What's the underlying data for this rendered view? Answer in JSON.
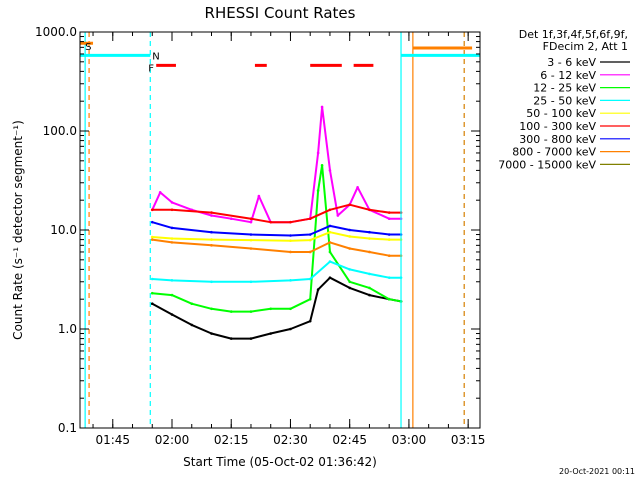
{
  "chart_data": {
    "type": "line",
    "title": "RHESSI Count Rates",
    "xlabel": "Start Time (05-Oct-02 01:36:42)",
    "ylabel": "Count Rate (s⁻¹ detector segment⁻¹)",
    "y_scale": "log",
    "xlim": [
      "01:36:42",
      "03:18:00"
    ],
    "ylim": [
      0.1,
      1000.0
    ],
    "x_ticks": [
      "01:45",
      "02:00",
      "02:15",
      "02:30",
      "02:45",
      "03:00",
      "03:15"
    ],
    "y_ticks": [
      "0.1",
      "1.0",
      "10.0",
      "100.0",
      "1000.0"
    ],
    "grid": false,
    "legend_position": "right",
    "legend_header": [
      "Det 1f,3f,4f,5f,6f,9f,",
      "FDecim 2, Att 1"
    ],
    "series": [
      {
        "name": "3 - 6 keV",
        "color": "#000000",
        "x": [
          "01:55",
          "02:00",
          "02:05",
          "02:10",
          "02:15",
          "02:20",
          "02:25",
          "02:30",
          "02:35",
          "02:37",
          "02:40",
          "02:45",
          "02:50",
          "02:55",
          "02:58"
        ],
        "y": [
          1.8,
          1.4,
          1.1,
          0.9,
          0.8,
          0.8,
          0.9,
          1.0,
          1.2,
          2.5,
          3.3,
          2.6,
          2.2,
          2.0,
          1.9
        ]
      },
      {
        "name": "6 - 12 keV",
        "color": "#ff00ff",
        "x": [
          "01:55",
          "01:57",
          "02:00",
          "02:05",
          "02:10",
          "02:15",
          "02:20",
          "02:22",
          "02:25",
          "02:30",
          "02:35",
          "02:37",
          "02:38",
          "02:40",
          "02:42",
          "02:45",
          "02:47",
          "02:50",
          "02:55",
          "02:58"
        ],
        "y": [
          16,
          24,
          19,
          16,
          14,
          13,
          12,
          22,
          12,
          12,
          13,
          60,
          175,
          40,
          14,
          18,
          27,
          16,
          13,
          13
        ]
      },
      {
        "name": "12 - 25 keV",
        "color": "#00ff00",
        "x": [
          "01:55",
          "02:00",
          "02:05",
          "02:10",
          "02:15",
          "02:20",
          "02:25",
          "02:30",
          "02:35",
          "02:37",
          "02:38",
          "02:40",
          "02:45",
          "02:50",
          "02:55",
          "02:58"
        ],
        "y": [
          2.3,
          2.2,
          1.8,
          1.6,
          1.5,
          1.5,
          1.6,
          1.6,
          2.0,
          25,
          45,
          6.0,
          3.0,
          2.6,
          2.0,
          1.9
        ]
      },
      {
        "name": "25 - 50 keV",
        "color": "#00ffff",
        "x": [
          "01:55",
          "02:00",
          "02:10",
          "02:20",
          "02:30",
          "02:35",
          "02:40",
          "02:45",
          "02:50",
          "02:55",
          "02:58"
        ],
        "y": [
          3.2,
          3.1,
          3.0,
          3.0,
          3.1,
          3.2,
          4.8,
          4.0,
          3.6,
          3.3,
          3.3
        ]
      },
      {
        "name": "50 - 100 keV",
        "color": "#ffff00",
        "x": [
          "01:55",
          "02:00",
          "02:10",
          "02:20",
          "02:30",
          "02:35",
          "02:40",
          "02:45",
          "02:50",
          "02:55",
          "02:58"
        ],
        "y": [
          8.5,
          8.2,
          8.0,
          7.9,
          7.8,
          7.9,
          9.5,
          8.6,
          8.2,
          8.0,
          8.0
        ]
      },
      {
        "name": "100 - 300 keV",
        "color": "#ff0000",
        "x": [
          "01:55",
          "02:00",
          "02:10",
          "02:20",
          "02:25",
          "02:30",
          "02:35",
          "02:40",
          "02:45",
          "02:50",
          "02:55",
          "02:58"
        ],
        "y": [
          16,
          16,
          15,
          13,
          12,
          12,
          13,
          16,
          18,
          16,
          15,
          15
        ]
      },
      {
        "name": "300 - 800 keV",
        "color": "#0000ff",
        "x": [
          "01:55",
          "02:00",
          "02:10",
          "02:20",
          "02:30",
          "02:35",
          "02:40",
          "02:45",
          "02:50",
          "02:55",
          "02:58"
        ],
        "y": [
          12,
          10.5,
          9.5,
          9.0,
          8.8,
          9.0,
          11.0,
          10.0,
          9.5,
          9.0,
          9.0
        ]
      },
      {
        "name": "800 - 7000 keV",
        "color": "#ff8000",
        "x": [
          "01:55",
          "02:00",
          "02:10",
          "02:20",
          "02:30",
          "02:35",
          "02:40",
          "02:45",
          "02:50",
          "02:55",
          "02:58"
        ],
        "y": [
          8.0,
          7.5,
          7.0,
          6.5,
          6.0,
          6.0,
          7.5,
          6.5,
          6.0,
          5.5,
          5.5
        ]
      },
      {
        "name": "7000 - 15000 keV",
        "color": "#808000",
        "x": [],
        "y": []
      }
    ],
    "flag_bars": [
      {
        "label": "S",
        "color": "#ff8000",
        "y": 770,
        "segments": [
          [
            "01:36:42",
            "01:40"
          ]
        ]
      },
      {
        "label": "",
        "color": "#00ffff",
        "y": 580,
        "segments": [
          [
            "01:36:42",
            "01:54:30"
          ],
          [
            "02:58",
            "03:18:00"
          ]
        ]
      },
      {
        "label": "",
        "color": "#ff8000",
        "y": 690,
        "segments": [
          [
            "03:01",
            "03:16"
          ]
        ]
      },
      {
        "label": "F",
        "color": "#ff0000",
        "y": 460,
        "segments": [
          [
            "01:56",
            "02:01"
          ],
          [
            "02:21",
            "02:24"
          ],
          [
            "02:35",
            "02:43"
          ],
          [
            "02:46",
            "02:51"
          ]
        ]
      }
    ],
    "flag_labels": [
      {
        "text": "S",
        "color": "#ff8000",
        "x": "01:38",
        "y": 720
      },
      {
        "text": "N",
        "color": "#00ffff",
        "x": "01:55",
        "y": 580
      },
      {
        "text": "F",
        "color": "#ff0000",
        "x": "01:54",
        "y": 440
      }
    ],
    "vertical_lines": [
      {
        "x": "01:38",
        "color": "#00ffff",
        "style": "solid"
      },
      {
        "x": "01:39",
        "color": "#ff8000",
        "style": "dashed"
      },
      {
        "x": "01:54:30",
        "color": "#00ffff",
        "style": "dashed"
      },
      {
        "x": "02:58",
        "color": "#00ffff",
        "style": "solid"
      },
      {
        "x": "03:01",
        "color": "#ff8000",
        "style": "solid"
      },
      {
        "x": "03:14",
        "color": "#00ffff",
        "style": "dashed"
      },
      {
        "x": "03:14",
        "color": "#ff8000",
        "style": "dashed"
      }
    ],
    "footer": "20-Oct-2021 00:11"
  }
}
